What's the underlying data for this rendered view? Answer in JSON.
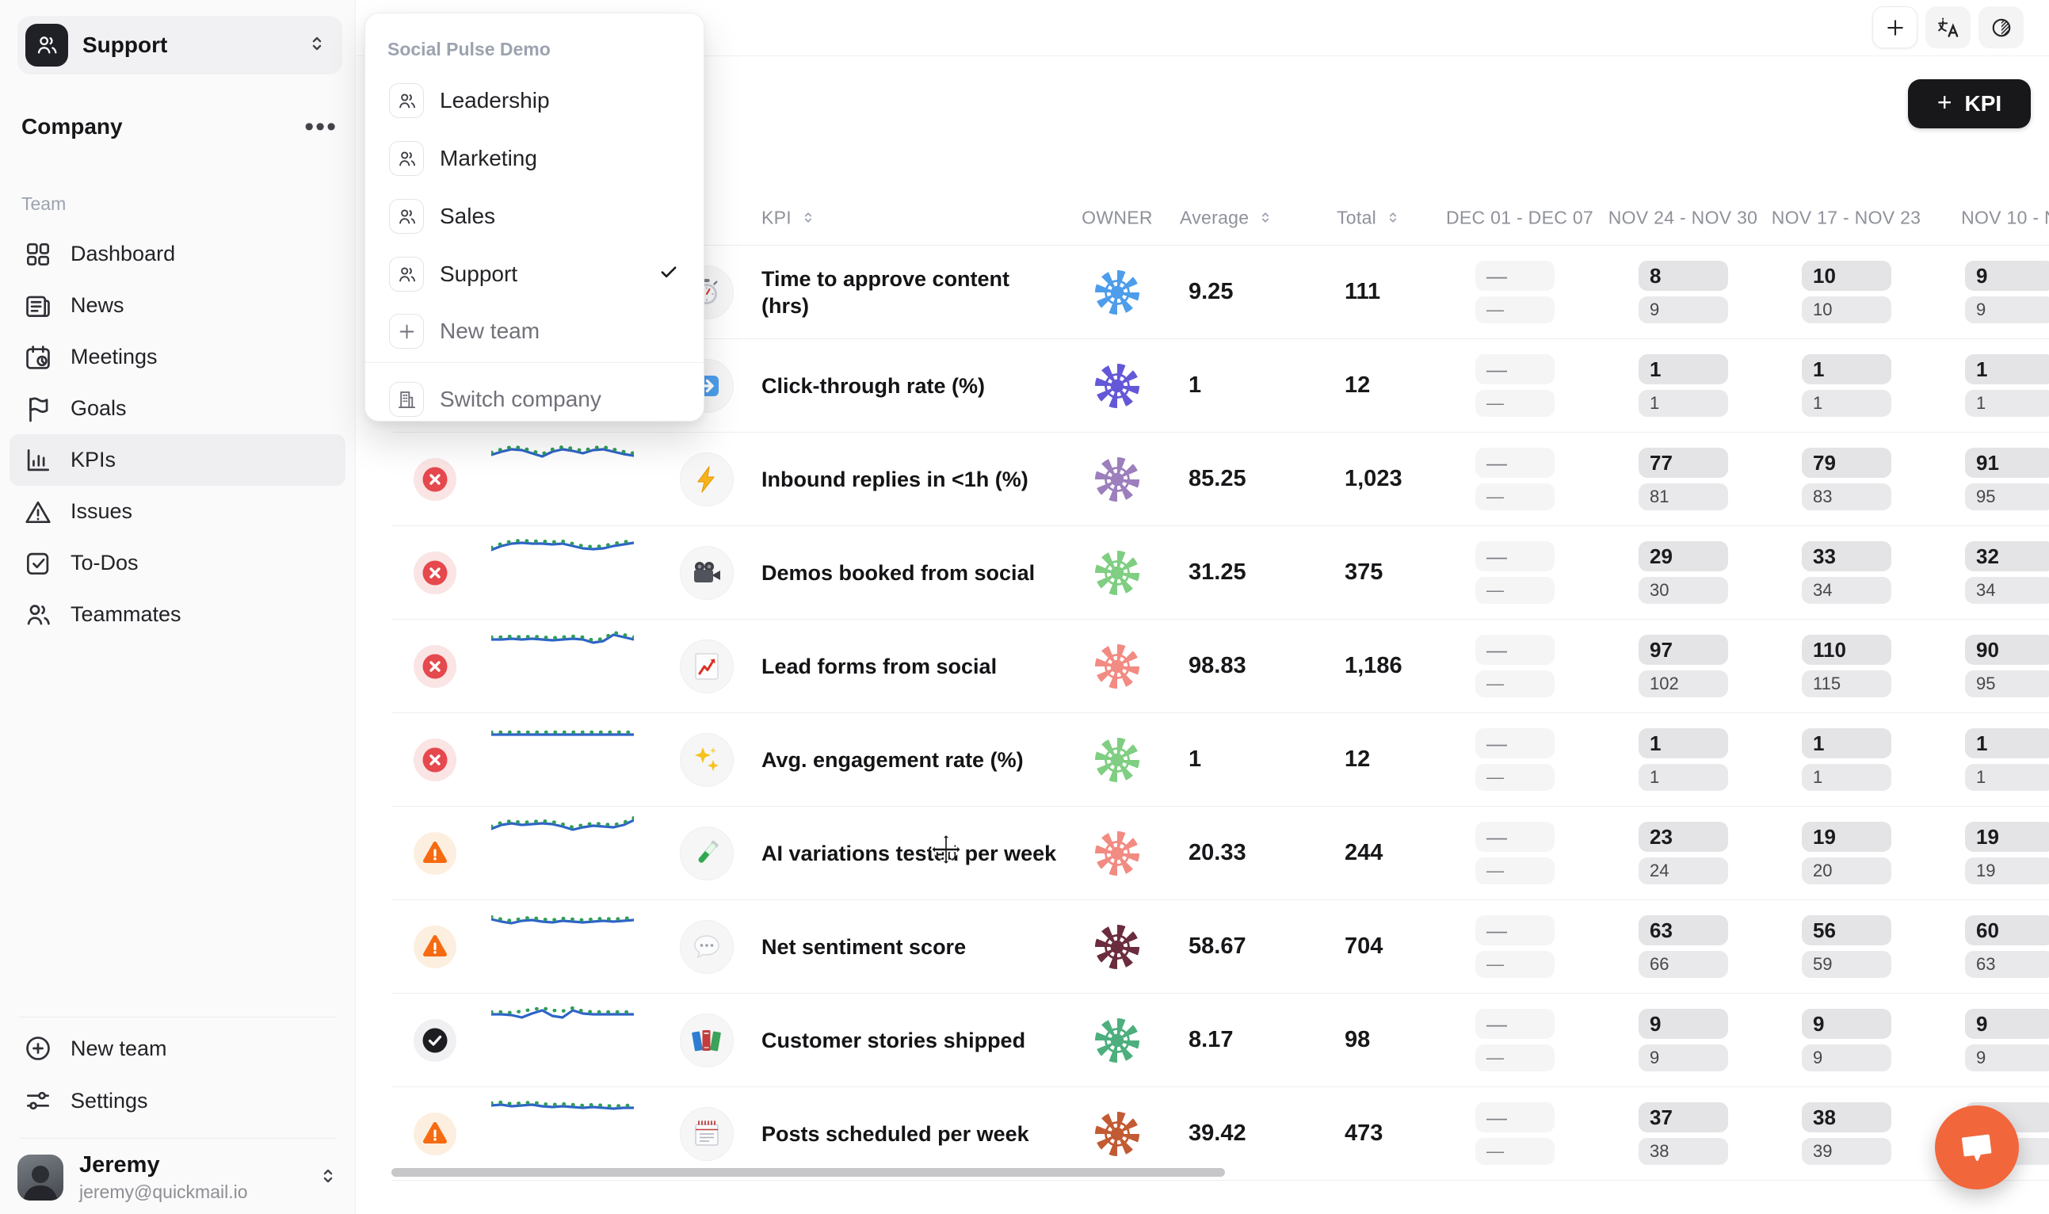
{
  "colors": {
    "accent_dark": "#18181B",
    "chat_bubble": "#F2663B",
    "status_offtrack": "#E5484D",
    "status_atrisk": "#F66A10",
    "status_done": "#1E1E22",
    "spark_blue": "#2E64C7",
    "spark_green": "#2F9E55"
  },
  "sidebar": {
    "team_selector": {
      "label": "Support"
    },
    "company_label": "Company",
    "team_section_label": "Team",
    "nav": [
      {
        "icon": "layout",
        "label": "Dashboard"
      },
      {
        "icon": "news",
        "label": "News"
      },
      {
        "icon": "meetings",
        "label": "Meetings"
      },
      {
        "icon": "goals",
        "label": "Goals"
      },
      {
        "icon": "kpis",
        "label": "KPIs",
        "active": true
      },
      {
        "icon": "issues",
        "label": "Issues"
      },
      {
        "icon": "todos",
        "label": "To-Dos"
      },
      {
        "icon": "people",
        "label": "Teammates"
      }
    ],
    "new_team_label": "New team",
    "settings_label": "Settings",
    "user": {
      "name": "Jeremy",
      "email": "jeremy@quickmail.io"
    }
  },
  "team_menu": {
    "company_name": "Social Pulse Demo",
    "items": [
      "Leadership",
      "Marketing",
      "Sales",
      "Support"
    ],
    "selected_index": 3,
    "new_team_label": "New team",
    "switch_company_label": "Switch company"
  },
  "toolbar": {
    "add_kpi_label": "KPI"
  },
  "table": {
    "headers": {
      "kpi": "KPI",
      "owner": "OWNER",
      "average": "Average",
      "total": "Total"
    },
    "week_columns": [
      "DEC 01 - DEC 07",
      "NOV 24 - NOV 30",
      "NOV 17 - NOV 23",
      "NOV 10 - N"
    ],
    "rows": [
      {
        "status": "",
        "icon": "stopwatch",
        "name": "Time to approve content\n(hrs)",
        "avatar_color": "#4D9DEB",
        "average": "9.25",
        "total": "111",
        "weeks": [
          [
            "—",
            "—"
          ],
          [
            "8",
            "9"
          ],
          [
            "10",
            "10"
          ],
          [
            "9",
            "9"
          ]
        ],
        "spark_blue": [
          15,
          13,
          11,
          12,
          10,
          12,
          13,
          11,
          12,
          13,
          12,
          11,
          12,
          13,
          12
        ],
        "spark_green": [
          12,
          10,
          8,
          9,
          7,
          9,
          10,
          8,
          9,
          10,
          9,
          8,
          9,
          10,
          9
        ]
      },
      {
        "status": "",
        "icon": "arrow",
        "name": "Click-through rate (%)",
        "avatar_color": "#6458D8",
        "average": "1",
        "total": "12",
        "weeks": [
          [
            "—",
            "—"
          ],
          [
            "1",
            "1"
          ],
          [
            "1",
            "1"
          ],
          [
            "1",
            "1"
          ]
        ],
        "spark_blue": [
          14,
          13,
          14,
          13,
          14,
          13,
          14,
          13,
          14,
          13,
          14,
          13,
          14,
          13,
          14
        ],
        "spark_green": [
          11,
          10,
          11,
          10,
          11,
          10,
          11,
          10,
          11,
          10,
          11,
          10,
          11,
          10,
          11
        ]
      },
      {
        "status": "off",
        "icon": "zap",
        "name": "Inbound replies in <1h (%)",
        "avatar_color": "#9C7FBC",
        "average": "85.25",
        "total": "1,023",
        "weeks": [
          [
            "—",
            "—"
          ],
          [
            "77",
            "81"
          ],
          [
            "79",
            "83"
          ],
          [
            "91",
            "95"
          ]
        ],
        "spark_blue": [
          16,
          12,
          9,
          10,
          14,
          18,
          12,
          9,
          11,
          14,
          10,
          9,
          12,
          15,
          17
        ],
        "spark_green": [
          13,
          9,
          6,
          7,
          11,
          15,
          9,
          6,
          8,
          11,
          7,
          6,
          9,
          12,
          14
        ]
      },
      {
        "status": "off",
        "icon": "camera",
        "name": "Demos booked from social",
        "avatar_color": "#7FCE82",
        "average": "31.25",
        "total": "375",
        "weeks": [
          [
            "—",
            "—"
          ],
          [
            "29",
            "30"
          ],
          [
            "33",
            "34"
          ],
          [
            "32",
            "34"
          ]
        ],
        "spark_blue": [
          18,
          13,
          10,
          9,
          10,
          10,
          11,
          10,
          13,
          16,
          17,
          16,
          13,
          11,
          9
        ],
        "spark_green": [
          15,
          10,
          7,
          6,
          7,
          7,
          8,
          7,
          10,
          13,
          14,
          13,
          10,
          8,
          6
        ]
      },
      {
        "status": "off",
        "icon": "chart",
        "name": "Lead forms from social",
        "avatar_color": "#F28B82",
        "average": "98.83",
        "total": "1,186",
        "weeks": [
          [
            "—",
            "—"
          ],
          [
            "97",
            "102"
          ],
          [
            "110",
            "115"
          ],
          [
            "90",
            "95"
          ]
        ],
        "spark_blue": [
          13,
          13,
          12,
          13,
          12,
          13,
          14,
          13,
          12,
          13,
          17,
          15,
          7,
          10,
          13
        ],
        "spark_green": [
          10,
          10,
          9,
          10,
          9,
          10,
          11,
          10,
          9,
          10,
          14,
          12,
          4,
          7,
          10
        ]
      },
      {
        "status": "off",
        "icon": "sparkles",
        "name": "Avg. engagement rate (%)",
        "avatar_color": "#7FCE82",
        "average": "1",
        "total": "12",
        "weeks": [
          [
            "—",
            "—"
          ],
          [
            "1",
            "1"
          ],
          [
            "1",
            "1"
          ],
          [
            "1",
            "1"
          ]
        ],
        "spark_blue": [
          15,
          15,
          15,
          15,
          15,
          15,
          15,
          15,
          15,
          15,
          15,
          15,
          15,
          15,
          15
        ],
        "spark_green": [
          12,
          12,
          12,
          12,
          12,
          12,
          12,
          12,
          12,
          12,
          12,
          12,
          12,
          12,
          12
        ]
      },
      {
        "status": "risk",
        "icon": "tube",
        "name": "AI variations tested per week",
        "avatar_color": "#F28B82",
        "average": "20.33",
        "total": "244",
        "weeks": [
          [
            "—",
            "—"
          ],
          [
            "23",
            "24"
          ],
          [
            "19",
            "20"
          ],
          [
            "19",
            "19"
          ]
        ],
        "spark_blue": [
          16,
          11,
          9,
          11,
          10,
          9,
          10,
          13,
          17,
          14,
          12,
          13,
          14,
          11,
          5
        ],
        "spark_green": [
          13,
          8,
          6,
          8,
          7,
          6,
          7,
          10,
          14,
          11,
          9,
          10,
          11,
          8,
          2
        ]
      },
      {
        "status": "risk",
        "icon": "speech",
        "name": "Net sentiment score",
        "avatar_color": "#6B2D3E",
        "average": "58.67",
        "total": "704",
        "weeks": [
          [
            "—",
            "—"
          ],
          [
            "63",
            "66"
          ],
          [
            "56",
            "59"
          ],
          [
            "60",
            "63"
          ]
        ],
        "spark_blue": [
          12,
          15,
          17,
          14,
          13,
          15,
          16,
          14,
          15,
          16,
          15,
          14,
          15,
          14,
          13
        ],
        "spark_green": [
          9,
          12,
          14,
          11,
          10,
          12,
          13,
          11,
          12,
          13,
          12,
          11,
          12,
          11,
          10
        ]
      },
      {
        "status": "done",
        "icon": "books",
        "name": "Customer stories shipped",
        "avatar_color": "#4CAF7D",
        "average": "8.17",
        "total": "98",
        "weeks": [
          [
            "—",
            "—"
          ],
          [
            "9",
            "9"
          ],
          [
            "9",
            "9"
          ],
          [
            "9",
            "9"
          ]
        ],
        "spark_blue": [
          14,
          14,
          15,
          18,
          13,
          9,
          16,
          18,
          9,
          13,
          14,
          14,
          14,
          14,
          14
        ],
        "spark_green": [
          11,
          11,
          12,
          10,
          8,
          6,
          9,
          10,
          6,
          10,
          11,
          11,
          11,
          11,
          11
        ]
      },
      {
        "status": "risk",
        "icon": "calendar",
        "name": "Posts scheduled per week",
        "avatar_color": "#C25B33",
        "average": "39.42",
        "total": "473",
        "weeks": [
          [
            "—",
            "—"
          ],
          [
            "37",
            "38"
          ],
          [
            "38",
            "39"
          ],
          [
            "",
            ""
          ]
        ],
        "spark_blue": [
          11,
          10,
          12,
          11,
          10,
          12,
          13,
          12,
          13,
          14,
          13,
          14,
          15,
          14,
          14
        ],
        "spark_green": [
          8,
          7,
          9,
          8,
          7,
          9,
          10,
          9,
          10,
          11,
          10,
          11,
          12,
          11,
          11
        ]
      }
    ]
  }
}
